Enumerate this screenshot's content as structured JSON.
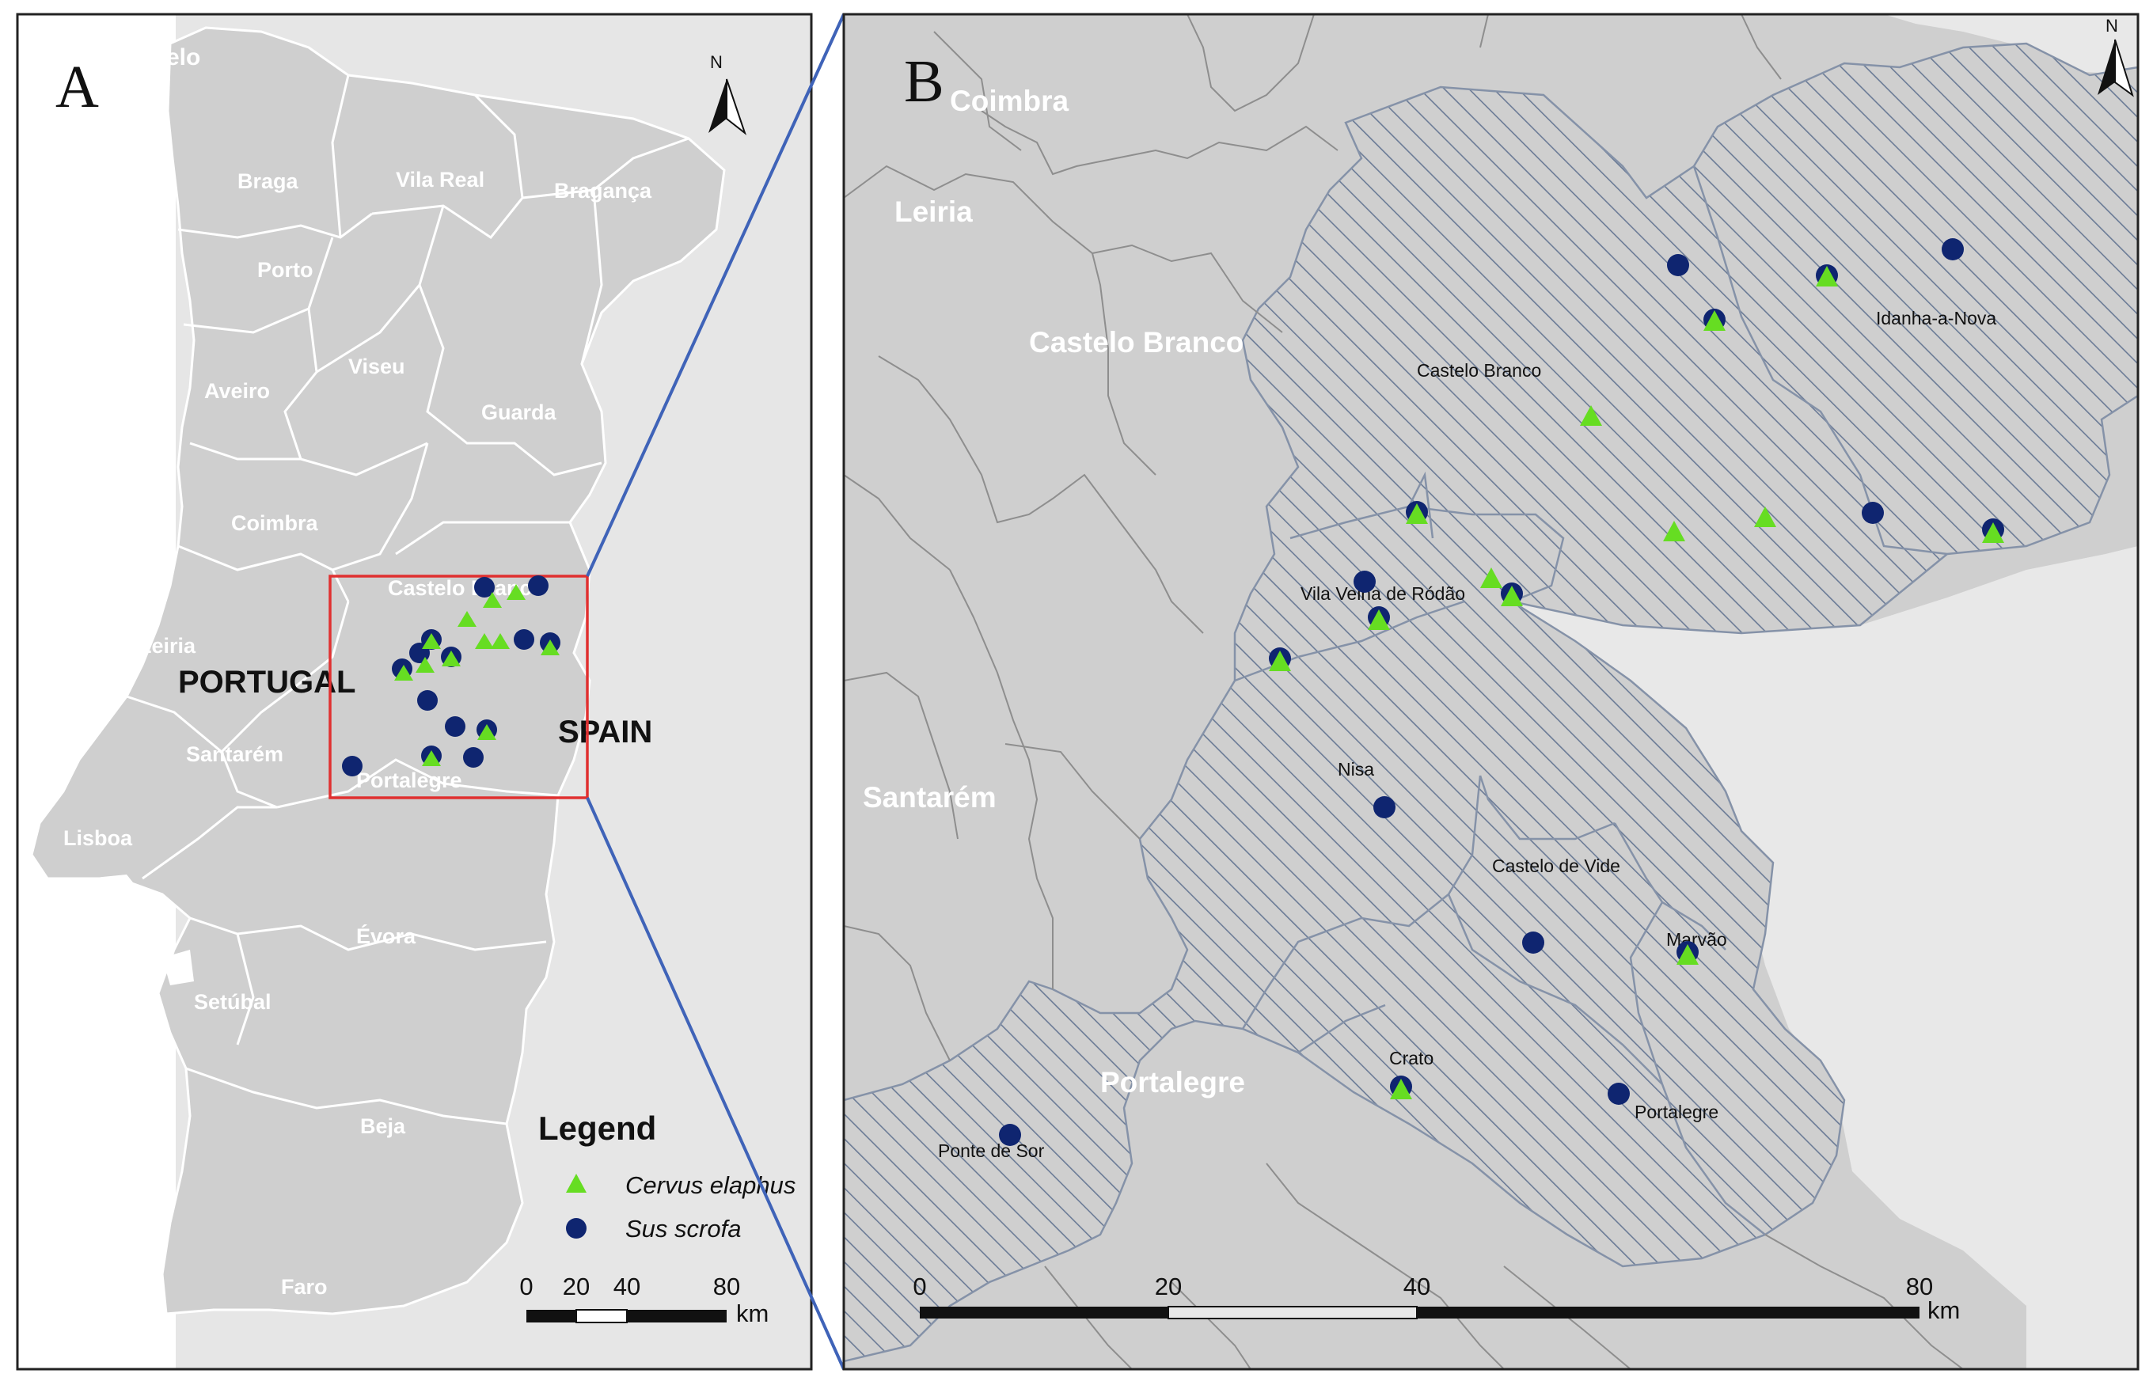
{
  "panel_a": {
    "letter": "A",
    "north": "N",
    "country_labels": [
      "PORTUGAL",
      "SPAIN"
    ],
    "district_labels": [
      "Braga",
      "Vila Real",
      "Bragança",
      "Porto",
      "Viseu",
      "Aveiro",
      "Guarda",
      "Coimbra",
      "Castelo Branco",
      "Leiria",
      "Santarém",
      "Portalegre",
      "Lisboa",
      "Évora",
      "Setúbal",
      "Beja",
      "Faro",
      "telo"
    ],
    "legend": {
      "title": "Legend",
      "items": [
        {
          "label": "Cervus elaphus",
          "symbol": "triangle",
          "color": "#66dd22"
        },
        {
          "label": "Sus scrofa",
          "symbol": "circle",
          "color": "#0f2570"
        }
      ]
    },
    "scale": {
      "ticks": [
        "0",
        "20",
        "40",
        "80"
      ],
      "unit": "km"
    }
  },
  "panel_b": {
    "letter": "B",
    "north": "N",
    "region_labels": [
      "Coimbra",
      "Leiria",
      "Castelo Branco",
      "Santarém",
      "Portalegre"
    ],
    "municipality_labels": [
      "Castelo Branco",
      "Idanha-a-Nova",
      "Vila Velha de Ródão",
      "Nisa",
      "Castelo de Vide",
      "Marvão",
      "Crato",
      "Portalegre",
      "Ponte de Sor"
    ],
    "scale": {
      "ticks": [
        "0",
        "20",
        "40",
        "80"
      ],
      "unit": "km"
    }
  },
  "colors": {
    "land": "#cfcfcf",
    "spain": "#e6e6e6",
    "hatch": "#6b7b96",
    "frame": "#222222",
    "inset_box": "#e03030",
    "connector": "#3f63b8",
    "triangle": "#66dd22",
    "circle": "#0f2570"
  }
}
